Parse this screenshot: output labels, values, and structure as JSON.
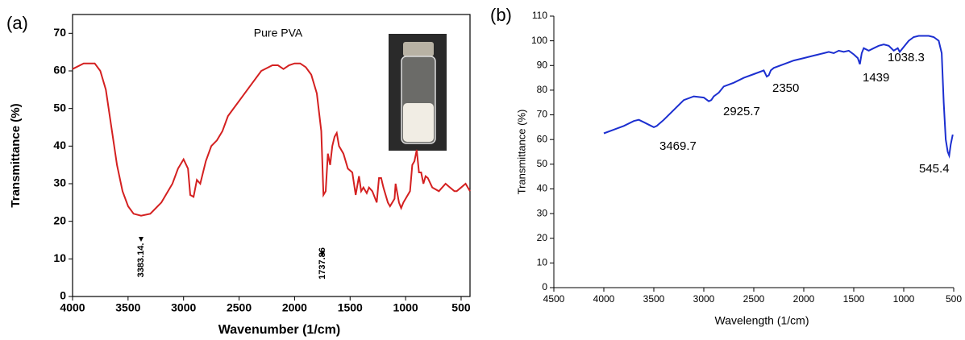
{
  "chart_data": [
    {
      "type": "line",
      "panel": "(a)",
      "title": "Pure PVA",
      "x_label": "Wavenumber (1/cm)",
      "y_label": "Transmittance (%)",
      "annotations": [
        "3383.14.",
        "1737.86"
      ],
      "color": "#d42020",
      "x": [
        4000,
        3900,
        3800,
        3750,
        3700,
        3650,
        3600,
        3550,
        3500,
        3450,
        3383,
        3300,
        3200,
        3100,
        3050,
        3000,
        2960,
        2940,
        2910,
        2880,
        2850,
        2800,
        2750,
        2700,
        2650,
        2600,
        2500,
        2400,
        2300,
        2200,
        2150,
        2100,
        2050,
        2000,
        1950,
        1900,
        1850,
        1800,
        1760,
        1740,
        1720,
        1700,
        1680,
        1660,
        1640,
        1620,
        1600,
        1560,
        1520,
        1480,
        1450,
        1420,
        1400,
        1380,
        1350,
        1330,
        1300,
        1260,
        1240,
        1220,
        1200,
        1160,
        1140,
        1100,
        1090,
        1060,
        1040,
        1020,
        960,
        940,
        920,
        900,
        880,
        860,
        840,
        820,
        800,
        760,
        700,
        640,
        600,
        560,
        540,
        500,
        460,
        420
      ],
      "values": [
        60.5,
        62,
        62,
        60,
        55,
        45,
        35,
        28,
        24,
        22,
        21.5,
        22,
        25,
        30,
        34,
        36.5,
        34,
        27,
        26.5,
        31,
        30,
        36,
        40,
        41.5,
        44,
        48,
        52,
        56,
        60,
        61.5,
        61.5,
        60.5,
        61.5,
        62,
        62,
        61,
        59,
        54,
        44,
        27,
        28,
        38,
        35,
        40,
        42.5,
        43.5,
        40,
        38,
        34,
        33,
        27,
        32,
        28,
        29,
        27.5,
        29,
        28,
        25,
        31.5,
        31.5,
        29,
        25,
        24,
        26,
        30,
        25,
        23.5,
        25,
        28,
        35,
        36,
        39,
        33,
        33,
        30,
        32,
        31.5,
        29,
        28,
        30,
        29,
        28,
        28,
        29,
        30,
        28
      ],
      "xlim": [
        4000,
        420
      ],
      "ylim": [
        0,
        75
      ],
      "xticks": [
        4000,
        3500,
        3000,
        2500,
        2000,
        1500,
        1000,
        500
      ],
      "yticks": [
        0,
        10,
        20,
        30,
        40,
        50,
        60,
        70
      ]
    },
    {
      "type": "line",
      "panel": "(b)",
      "x_label": "Wavelength (1/cm)",
      "y_label": "Transmittance (%)",
      "annotations": [
        "3469.7",
        "2925.7",
        "2350",
        "1439",
        "1038.3",
        "545.4"
      ],
      "color": "#1c2fd0",
      "x": [
        4000,
        3900,
        3800,
        3700,
        3650,
        3600,
        3550,
        3500,
        3470,
        3400,
        3300,
        3200,
        3100,
        3000,
        2950,
        2925,
        2900,
        2850,
        2800,
        2700,
        2600,
        2500,
        2400,
        2370,
        2350,
        2330,
        2300,
        2200,
        2100,
        2000,
        1900,
        1800,
        1750,
        1700,
        1650,
        1600,
        1550,
        1500,
        1460,
        1439,
        1420,
        1400,
        1350,
        1300,
        1250,
        1200,
        1150,
        1100,
        1060,
        1040,
        1000,
        950,
        900,
        850,
        800,
        750,
        700,
        650,
        620,
        600,
        580,
        560,
        545,
        530,
        510
      ],
      "values": [
        62.5,
        64,
        65.5,
        67.5,
        68,
        67,
        66,
        65,
        65.5,
        68,
        72,
        76,
        77.5,
        77,
        75.5,
        76,
        77.5,
        79,
        81.5,
        83,
        85,
        86.5,
        88,
        85.5,
        86,
        88,
        89,
        90.5,
        92,
        93,
        94,
        95,
        95.5,
        95,
        96,
        95.5,
        96,
        94.5,
        93,
        90.5,
        95,
        97,
        96,
        97,
        98,
        98.5,
        98,
        96,
        97,
        95.5,
        97.5,
        100,
        101.5,
        102,
        102,
        102,
        101.5,
        100,
        95,
        75,
        60,
        55,
        53.5,
        58,
        62
      ],
      "xlim": [
        4500,
        500
      ],
      "ylim": [
        0,
        110
      ],
      "xticks": [
        4500,
        4000,
        3500,
        3000,
        2500,
        2000,
        1500,
        1000,
        500
      ],
      "yticks": [
        0,
        10,
        20,
        30,
        40,
        50,
        60,
        70,
        80,
        90,
        100,
        110
      ]
    }
  ]
}
